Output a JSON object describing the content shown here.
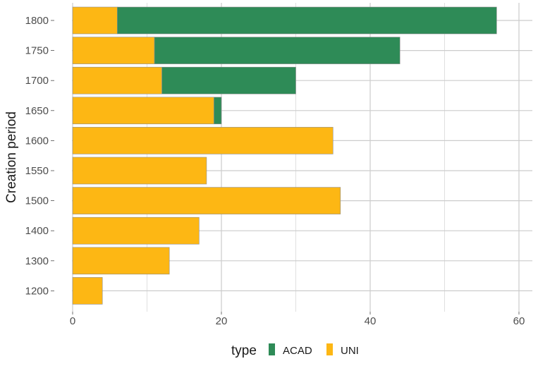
{
  "chart_data": {
    "type": "bar",
    "orientation": "horizontal",
    "stacked": true,
    "title": "",
    "xlabel": "",
    "ylabel": "Creation period",
    "categories": [
      "1200",
      "1300",
      "1400",
      "1500",
      "1550",
      "1600",
      "1650",
      "1700",
      "1750",
      "1800"
    ],
    "series": [
      {
        "name": "UNI",
        "color": "#FDB714",
        "values": [
          4,
          13,
          17,
          36,
          18,
          35,
          19,
          12,
          11,
          6
        ]
      },
      {
        "name": "ACAD",
        "color": "#2E8B57",
        "values": [
          0,
          0,
          0,
          0,
          0,
          0,
          1,
          18,
          33,
          51
        ]
      }
    ],
    "xlim": [
      0,
      60
    ],
    "x_ticks": [
      0,
      20,
      40,
      60
    ],
    "grid": true,
    "legend": {
      "title": "type",
      "position": "bottom",
      "entries": [
        "ACAD",
        "UNI"
      ]
    }
  }
}
